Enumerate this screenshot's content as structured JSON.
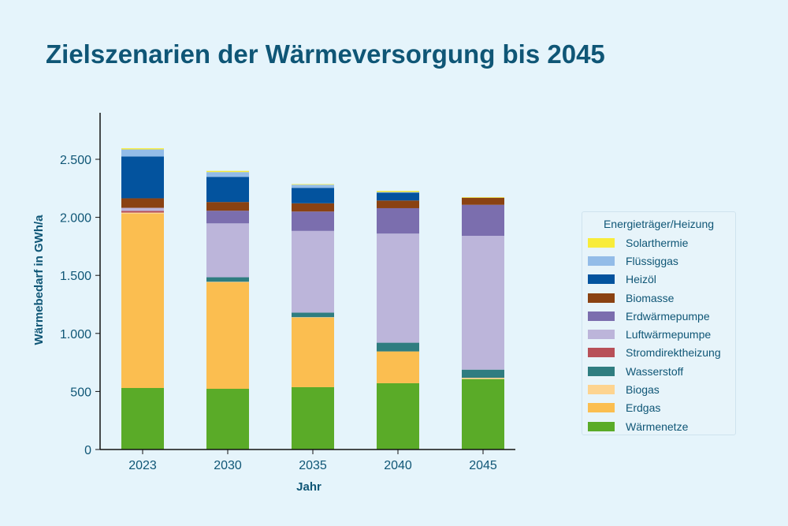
{
  "title": "Zielszenarien der Wärmeversorgung bis 2045",
  "chart_data": {
    "type": "bar",
    "stacked": true,
    "title": "Zielszenarien der Wärmeversorgung bis 2045",
    "xlabel": "Jahr",
    "ylabel": "Wärmebedarf in GWh/a",
    "categories": [
      "2023",
      "2030",
      "2035",
      "2040",
      "2045"
    ],
    "ylim": [
      0,
      2900
    ],
    "yticks": [
      0,
      500,
      1000,
      1500,
      2000,
      2500
    ],
    "ytick_labels": [
      "0",
      "500",
      "1.000",
      "1.500",
      "2.000",
      "2.500"
    ],
    "grid": false,
    "legend_title": "Energieträger/Heizung",
    "legend_position": "right",
    "series": [
      {
        "name": "Wärmenetze",
        "color": "#5aab28",
        "values": [
          530,
          523,
          537,
          571,
          607
        ]
      },
      {
        "name": "Erdgas",
        "color": "#fbbe50",
        "values": [
          1501,
          917,
          600,
          274,
          0
        ]
      },
      {
        "name": "Biogas",
        "color": "#fdd490",
        "values": [
          10,
          5,
          3,
          0,
          11
        ]
      },
      {
        "name": "Wasserstoff",
        "color": "#2f7d80",
        "values": [
          0,
          39,
          39,
          75,
          70
        ]
      },
      {
        "name": "Stromdirektheizung",
        "color": "#b85058",
        "values": [
          14,
          0,
          0,
          0,
          0
        ]
      },
      {
        "name": "Luftwärmepumpe",
        "color": "#bcb5da",
        "values": [
          27,
          464,
          704,
          940,
          1153
        ]
      },
      {
        "name": "Erdwärmepumpe",
        "color": "#7b6eae",
        "values": [
          0,
          109,
          167,
          219,
          267
        ]
      },
      {
        "name": "Biomasse",
        "color": "#8a4212",
        "values": [
          82,
          75,
          71,
          66,
          61
        ]
      },
      {
        "name": "Heizöl",
        "color": "#03539e",
        "values": [
          360,
          217,
          133,
          68,
          0
        ]
      },
      {
        "name": "Flüssiggas",
        "color": "#93bce8",
        "values": [
          61,
          41,
          27,
          5,
          0
        ]
      },
      {
        "name": "Solarthermie",
        "color": "#f8ec3a",
        "values": [
          10,
          10,
          5,
          10,
          5
        ]
      }
    ]
  }
}
